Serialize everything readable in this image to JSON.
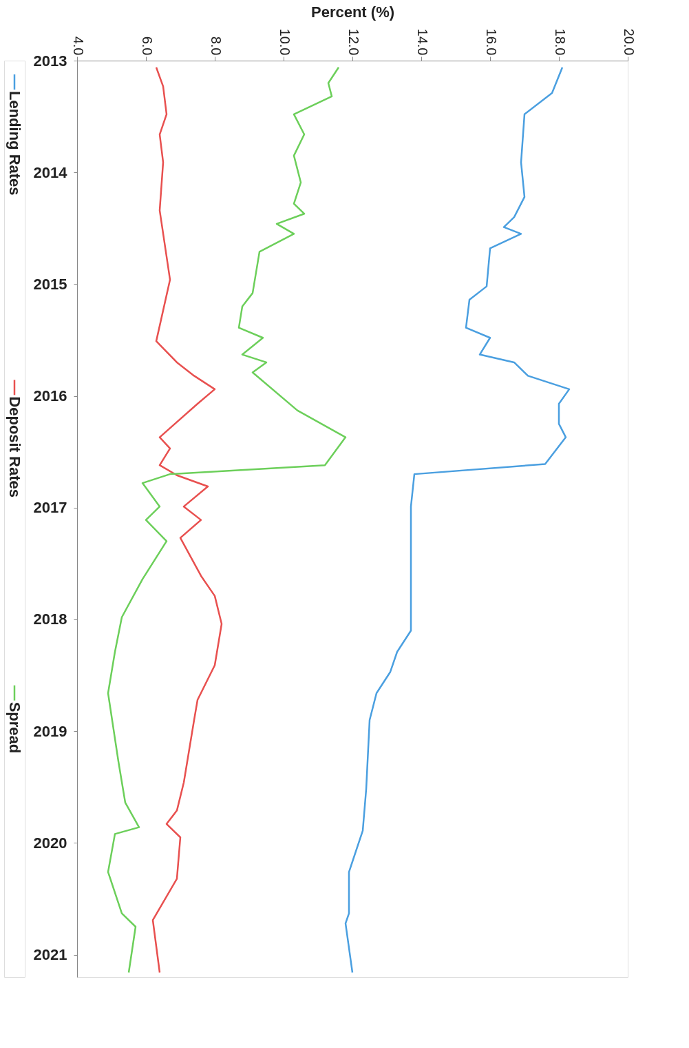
{
  "chart_data": {
    "type": "line",
    "xlabel": "Percent (%)",
    "ylim": [
      2021.2,
      2013
    ],
    "yticks": [
      2013,
      2014,
      2015,
      2016,
      2017,
      2018,
      2019,
      2020,
      2021
    ],
    "xlim": [
      4,
      20
    ],
    "xticks": [
      {
        "value": 4,
        "label": "4.0"
      },
      {
        "value": 6,
        "label": "6.0"
      },
      {
        "value": 8,
        "label": "8.0"
      },
      {
        "value": 10,
        "label": "10.0"
      },
      {
        "value": 12,
        "label": "12.0"
      },
      {
        "value": 14,
        "label": "14.0"
      },
      {
        "value": 16,
        "label": "16.0"
      },
      {
        "value": 18,
        "label": "18.0"
      },
      {
        "value": 20,
        "label": "20.0"
      }
    ],
    "grid": false,
    "legend": "left",
    "marker": "none",
    "line_style": "solid",
    "series": [
      {
        "name": "Lending Rates",
        "color": "#4a9fe0",
        "values": [
          2013.06,
          2013.29,
          2013.48,
          2013.91,
          2014.22,
          2014.4,
          2014.49,
          2014.55,
          2014.68,
          2015.02,
          2015.14,
          2015.39,
          2015.48,
          2015.63,
          2015.7,
          2015.82,
          2015.94,
          2016.07,
          2016.25,
          2016.37,
          2016.61,
          2016.7,
          2016.99,
          2018.1,
          2018.29,
          2018.47,
          2018.66,
          2018.9,
          2019.52,
          2019.89,
          2020.26,
          2020.63,
          2020.72,
          2021.16
        ],
        "x": [
          18.1,
          17.8,
          17.0,
          16.9,
          17.0,
          16.7,
          16.4,
          16.9,
          16.0,
          15.9,
          15.4,
          15.3,
          16.0,
          15.7,
          16.7,
          17.1,
          18.3,
          18.0,
          18.0,
          18.2,
          17.6,
          13.8,
          13.7,
          13.7,
          13.3,
          13.1,
          12.7,
          12.5,
          12.4,
          12.3,
          11.9,
          11.9,
          11.8,
          12.0
        ]
      },
      {
        "name": "Deposit Rates",
        "color": "#e8504f",
        "values": [
          2013.06,
          2013.23,
          2013.48,
          2013.66,
          2013.91,
          2014.34,
          2014.96,
          2015.51,
          2015.7,
          2015.82,
          2015.94,
          2016.07,
          2016.37,
          2016.47,
          2016.62,
          2016.71,
          2016.81,
          2016.99,
          2017.11,
          2017.27,
          2017.61,
          2017.79,
          2018.04,
          2018.41,
          2018.72,
          2018.9,
          2019.46,
          2019.71,
          2019.83,
          2019.95,
          2020.32,
          2020.69,
          2021.16
        ],
        "x": [
          6.3,
          6.5,
          6.6,
          6.4,
          6.5,
          6.4,
          6.7,
          6.3,
          6.9,
          7.4,
          8.0,
          7.5,
          6.4,
          6.7,
          6.4,
          6.9,
          7.8,
          7.1,
          7.6,
          7.0,
          7.6,
          8.0,
          8.2,
          8.0,
          7.5,
          7.4,
          7.1,
          6.9,
          6.6,
          7.0,
          6.9,
          6.2,
          6.4
        ]
      },
      {
        "name": "Spread",
        "color": "#6ccf5a",
        "values": [
          2013.06,
          2013.2,
          2013.32,
          2013.48,
          2013.66,
          2013.85,
          2014.09,
          2014.28,
          2014.37,
          2014.46,
          2014.55,
          2014.71,
          2015.08,
          2015.2,
          2015.39,
          2015.48,
          2015.63,
          2015.7,
          2015.79,
          2016.13,
          2016.37,
          2016.62,
          2016.7,
          2016.78,
          2016.99,
          2017.11,
          2017.3,
          2017.64,
          2017.98,
          2018.29,
          2018.66,
          2019.27,
          2019.64,
          2019.86,
          2019.92,
          2020.26,
          2020.63,
          2020.75,
          2021.16
        ],
        "x": [
          11.6,
          11.3,
          11.4,
          10.3,
          10.6,
          10.3,
          10.5,
          10.3,
          10.6,
          9.8,
          10.3,
          9.3,
          9.1,
          8.8,
          8.7,
          9.4,
          8.8,
          9.5,
          9.1,
          10.4,
          11.8,
          11.2,
          6.7,
          5.9,
          6.4,
          6.0,
          6.6,
          5.9,
          5.3,
          5.1,
          4.9,
          5.2,
          5.4,
          5.8,
          5.1,
          4.9,
          5.3,
          5.7,
          5.5
        ]
      }
    ]
  }
}
